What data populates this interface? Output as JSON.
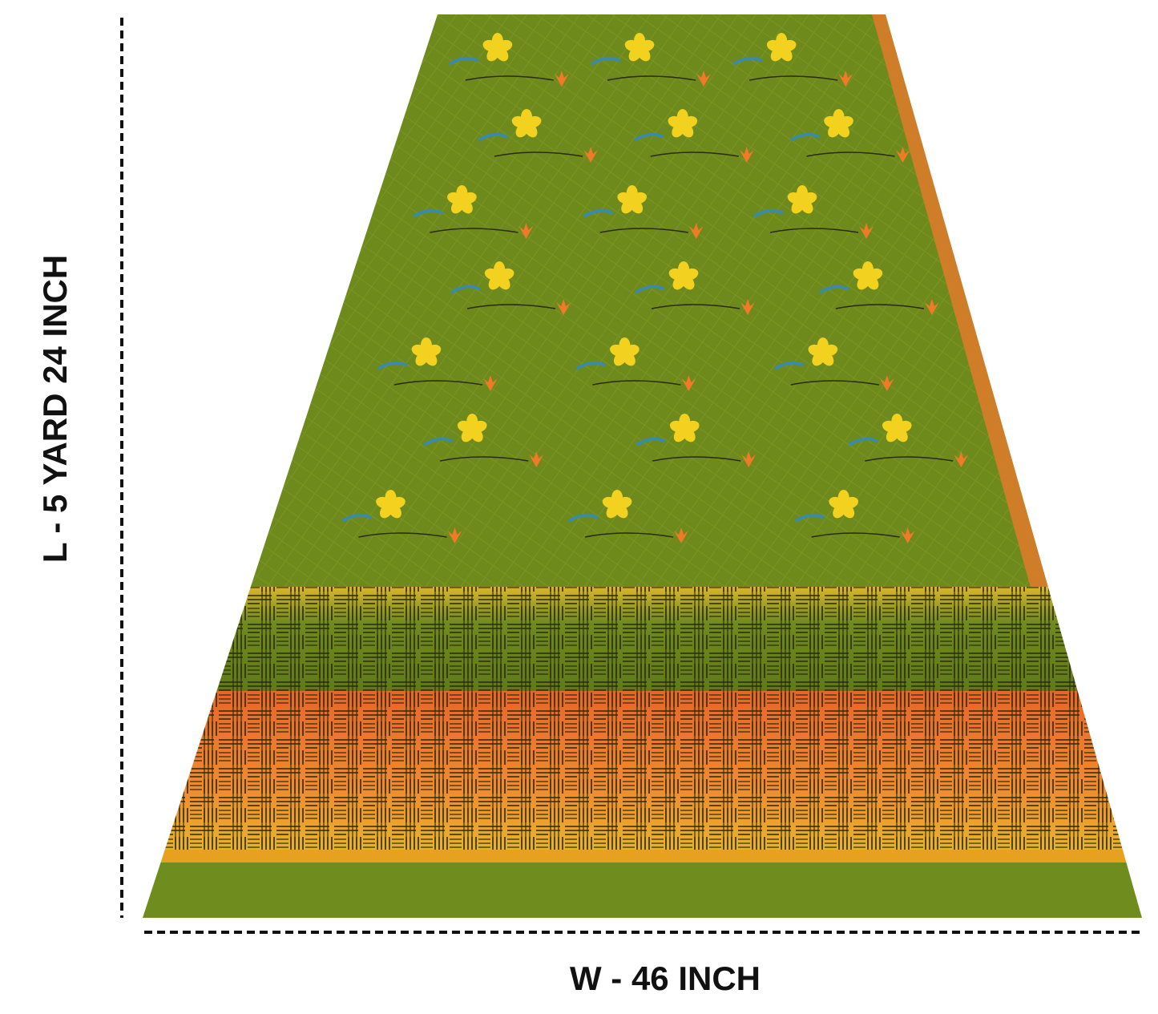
{
  "labels": {
    "length": "L - 5 YARD 24 INCH",
    "width": "W - 46 INCH"
  }
}
